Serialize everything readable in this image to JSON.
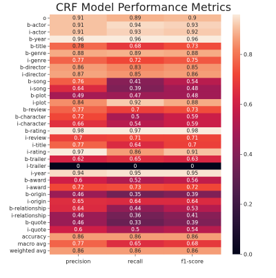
{
  "chart_data": {
    "type": "heatmap",
    "title": "CRF Model Performance Metrics",
    "columns": [
      "precision",
      "recall",
      "f1-score"
    ],
    "rows": [
      "o",
      "b-actor",
      "i-actor",
      "b-year",
      "b-title",
      "b-genre",
      "i-genre",
      "b-director",
      "i-director",
      "b-song",
      "i-song",
      "b-plot",
      "i-plot",
      "b-review",
      "b-character",
      "i-character",
      "b-rating",
      "i-review",
      "i-title",
      "i-rating",
      "b-trailer",
      "i-trailer",
      "i-year",
      "b-award",
      "i-award",
      "b-origin",
      "i-origin",
      "b-relationship",
      "i-relationship",
      "b-quote",
      "i-quote",
      "accuracy",
      "macro avg",
      "weighted avg"
    ],
    "values": [
      [
        0.91,
        0.89,
        0.9
      ],
      [
        0.91,
        0.94,
        0.93
      ],
      [
        0.91,
        0.93,
        0.92
      ],
      [
        0.96,
        0.96,
        0.96
      ],
      [
        0.78,
        0.68,
        0.73
      ],
      [
        0.88,
        0.89,
        0.88
      ],
      [
        0.77,
        0.72,
        0.75
      ],
      [
        0.86,
        0.83,
        0.85
      ],
      [
        0.87,
        0.85,
        0.86
      ],
      [
        0.76,
        0.41,
        0.54
      ],
      [
        0.64,
        0.39,
        0.48
      ],
      [
        0.49,
        0.47,
        0.48
      ],
      [
        0.84,
        0.92,
        0.88
      ],
      [
        0.77,
        0.7,
        0.73
      ],
      [
        0.72,
        0.5,
        0.59
      ],
      [
        0.66,
        0.54,
        0.59
      ],
      [
        0.98,
        0.97,
        0.98
      ],
      [
        0.7,
        0.71,
        0.71
      ],
      [
        0.77,
        0.64,
        0.7
      ],
      [
        0.97,
        0.86,
        0.91
      ],
      [
        0.62,
        0.65,
        0.63
      ],
      [
        0,
        0,
        0
      ],
      [
        0.94,
        0.95,
        0.95
      ],
      [
        0.6,
        0.52,
        0.56
      ],
      [
        0.72,
        0.73,
        0.72
      ],
      [
        0.46,
        0.35,
        0.39
      ],
      [
        0.65,
        0.64,
        0.64
      ],
      [
        0.64,
        0.44,
        0.53
      ],
      [
        0.46,
        0.36,
        0.41
      ],
      [
        0.46,
        0.33,
        0.39
      ],
      [
        0.6,
        0.5,
        0.54
      ],
      [
        0.86,
        0.86,
        0.86
      ],
      [
        0.77,
        0.65,
        0.68
      ],
      [
        0.86,
        0.86,
        0.86
      ]
    ],
    "colorbar": {
      "range": [
        0.0,
        0.96
      ],
      "ticks": [
        "0.0",
        "0.2",
        "0.4",
        "0.6",
        "0.8"
      ],
      "colormap": "rocket"
    },
    "xlabel": "",
    "ylabel": ""
  }
}
